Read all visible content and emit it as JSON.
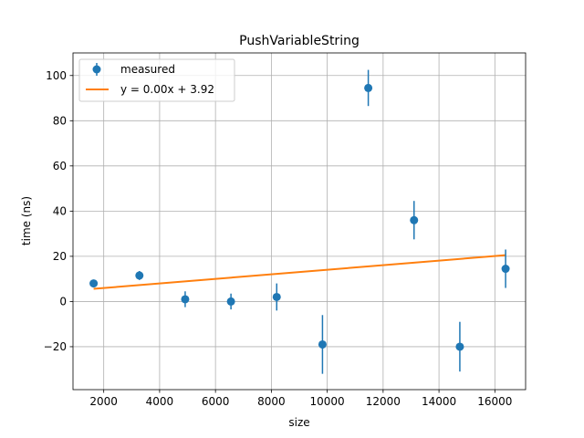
{
  "chart_data": {
    "type": "scatter",
    "title": "PushVariableString",
    "xlabel": "size",
    "ylabel": "time (ns)",
    "xlim": [
      900,
      17100
    ],
    "ylim": [
      -39,
      110
    ],
    "xticks": [
      2000,
      4000,
      6000,
      8000,
      10000,
      12000,
      14000,
      16000
    ],
    "yticks": [
      -20,
      0,
      20,
      40,
      60,
      80,
      100
    ],
    "xtick_labels": [
      "2000",
      "4000",
      "6000",
      "8000",
      "10000",
      "12000",
      "14000",
      "16000"
    ],
    "ytick_labels": [
      "−20",
      "0",
      "20",
      "40",
      "60",
      "80",
      "100"
    ],
    "grid": true,
    "legend_position": "top-left",
    "series": [
      {
        "name": "measured",
        "kind": "errorbar",
        "color": "#1f77b4",
        "x": [
          1638,
          3277,
          4915,
          6554,
          8192,
          9830,
          11469,
          13107,
          14746,
          16384
        ],
        "y": [
          8.0,
          11.5,
          1.0,
          0.0,
          2.0,
          -19.0,
          94.5,
          36.0,
          -20.0,
          14.5
        ],
        "yerr": [
          1.0,
          2.0,
          3.5,
          3.5,
          6.0,
          13.0,
          8.0,
          8.5,
          11.0,
          8.5
        ]
      },
      {
        "name": "y = 0.00x + 3.92",
        "kind": "line",
        "color": "#ff7f0e",
        "x": [
          1638,
          16384
        ],
        "y": [
          5.6,
          20.5
        ]
      }
    ]
  }
}
